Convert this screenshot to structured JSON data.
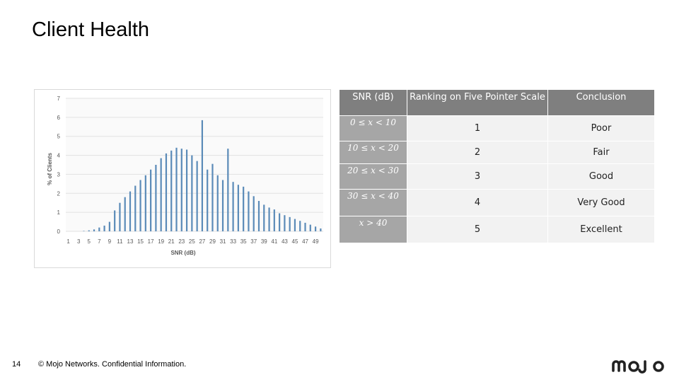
{
  "slide": {
    "title": "Client Health",
    "page_number": "14",
    "copyright": "© Mojo Networks. Confidential Information.",
    "logo_text": "mojo"
  },
  "table": {
    "headers": [
      "SNR (dB)",
      "Ranking on Five Pointer Scale",
      "Conclusion"
    ],
    "rows": [
      {
        "range": "0 ≤ x < 10",
        "rank": "1",
        "conclusion": "Poor"
      },
      {
        "range": "10 ≤ x < 20",
        "rank": "2",
        "conclusion": "Fair"
      },
      {
        "range": "20 ≤ x < 30",
        "rank": "3",
        "conclusion": "Good"
      },
      {
        "range": "30 ≤ x < 40",
        "rank": "4",
        "conclusion": "Very Good"
      },
      {
        "range": "x > 40",
        "rank": "5",
        "conclusion": "Excellent"
      }
    ]
  },
  "colors": {
    "bar": "#5b8bb8",
    "header_bg": "#7f7f7f",
    "range_bg": "#a6a6a6",
    "cell_bg": "#f2f2f2",
    "logo": "#222222"
  },
  "chart_data": {
    "type": "bar",
    "xlabel": "SNR (dB)",
    "ylabel": "% of Clients",
    "ylim": [
      0,
      7
    ],
    "yticks": [
      0,
      1,
      2,
      3,
      4,
      5,
      6,
      7
    ],
    "grid": true,
    "tick_labels": [
      "1",
      "3",
      "5",
      "7",
      "9",
      "11",
      "13",
      "15",
      "17",
      "19",
      "21",
      "23",
      "25",
      "27",
      "29",
      "31",
      "33",
      "35",
      "37",
      "39",
      "41",
      "43",
      "45",
      "47",
      "49"
    ],
    "categories": [
      1,
      2,
      3,
      4,
      5,
      6,
      7,
      8,
      9,
      10,
      11,
      12,
      13,
      14,
      15,
      16,
      17,
      18,
      19,
      20,
      21,
      22,
      23,
      24,
      25,
      26,
      27,
      28,
      29,
      30,
      31,
      32,
      33,
      34,
      35,
      36,
      37,
      38,
      39,
      40,
      41,
      42,
      43,
      44,
      45,
      46,
      47,
      48,
      49,
      50
    ],
    "values": [
      0,
      0,
      0,
      0.02,
      0.05,
      0.1,
      0.2,
      0.3,
      0.5,
      1.1,
      1.5,
      1.8,
      2.1,
      2.4,
      2.7,
      2.95,
      3.25,
      3.5,
      3.85,
      4.1,
      4.25,
      4.4,
      4.35,
      4.3,
      4.0,
      3.7,
      5.85,
      3.25,
      3.55,
      2.95,
      2.7,
      4.35,
      2.6,
      2.45,
      2.35,
      2.1,
      1.85,
      1.6,
      1.4,
      1.25,
      1.15,
      0.95,
      0.85,
      0.75,
      0.65,
      0.55,
      0.45,
      0.35,
      0.25,
      0.15
    ]
  }
}
